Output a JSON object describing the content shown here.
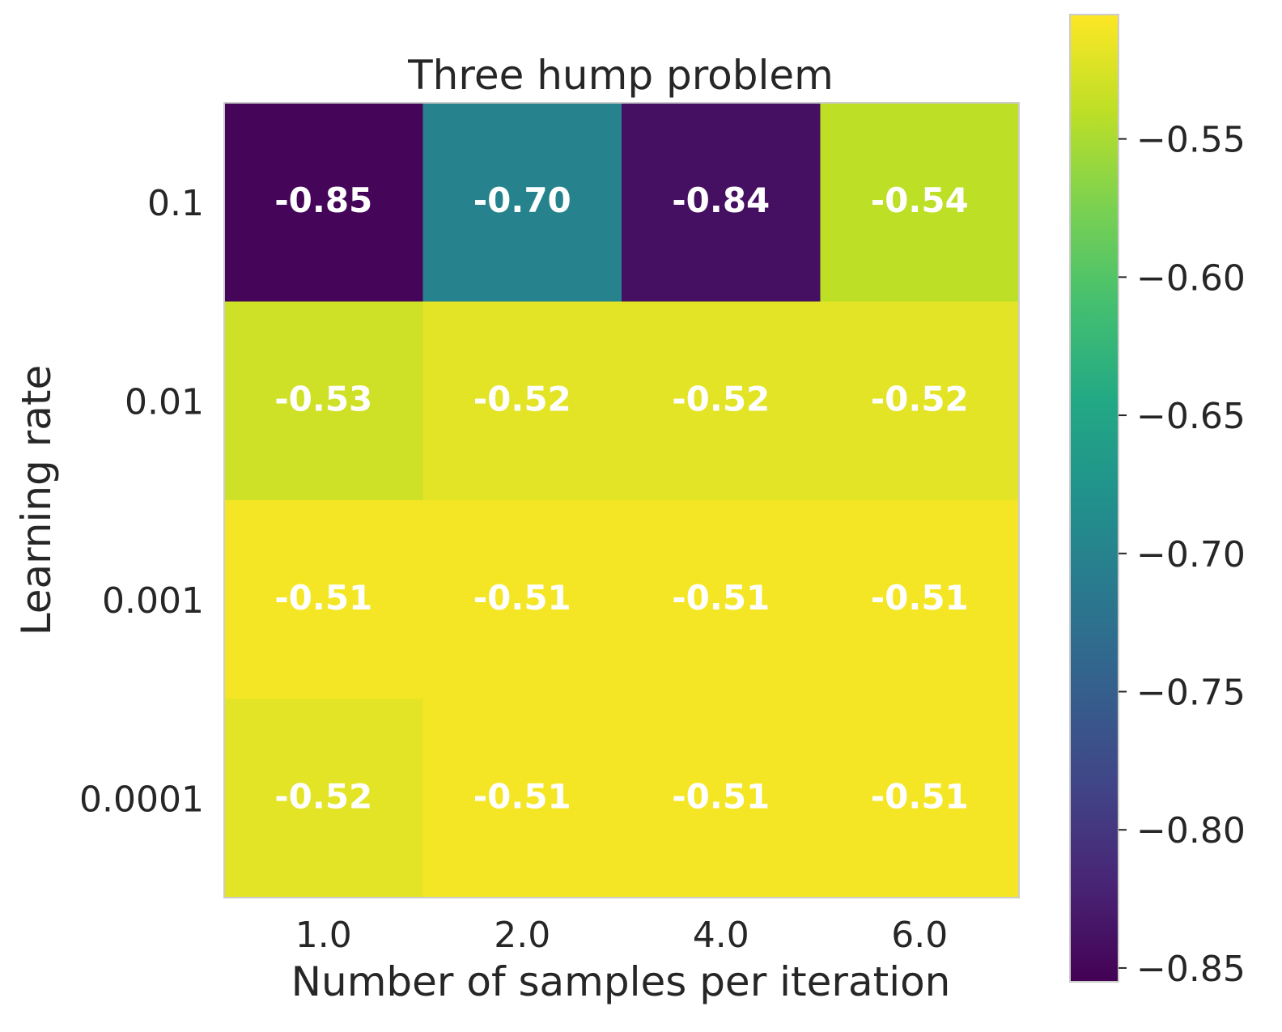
{
  "chart_data": {
    "type": "heatmap",
    "title": "Three hump problem",
    "xlabel": "Number of samples per iteration",
    "ylabel": "Learning rate",
    "x_categories": [
      "1.0",
      "2.0",
      "4.0",
      "6.0"
    ],
    "y_categories": [
      "0.1",
      "0.01",
      "0.001",
      "0.0001"
    ],
    "values": [
      [
        -0.85,
        -0.7,
        -0.84,
        -0.54
      ],
      [
        -0.53,
        -0.52,
        -0.52,
        -0.52
      ],
      [
        -0.51,
        -0.51,
        -0.51,
        -0.51
      ],
      [
        -0.52,
        -0.51,
        -0.51,
        -0.51
      ]
    ],
    "cell_labels": [
      [
        "-0.85",
        "-0.70",
        "-0.84",
        "-0.54"
      ],
      [
        "-0.53",
        "-0.52",
        "-0.52",
        "-0.52"
      ],
      [
        "-0.51",
        "-0.51",
        "-0.51",
        "-0.51"
      ],
      [
        "-0.52",
        "-0.51",
        "-0.51",
        "-0.51"
      ]
    ],
    "colormap": "viridis",
    "color_range": [
      -0.855,
      -0.505
    ],
    "colorbar_ticks": [
      -0.55,
      -0.6,
      -0.65,
      -0.7,
      -0.75,
      -0.8,
      -0.85
    ],
    "colorbar_tick_labels": [
      "−0.55",
      "−0.60",
      "−0.65",
      "−0.70",
      "−0.75",
      "−0.80",
      "−0.85"
    ],
    "grid": false
  }
}
